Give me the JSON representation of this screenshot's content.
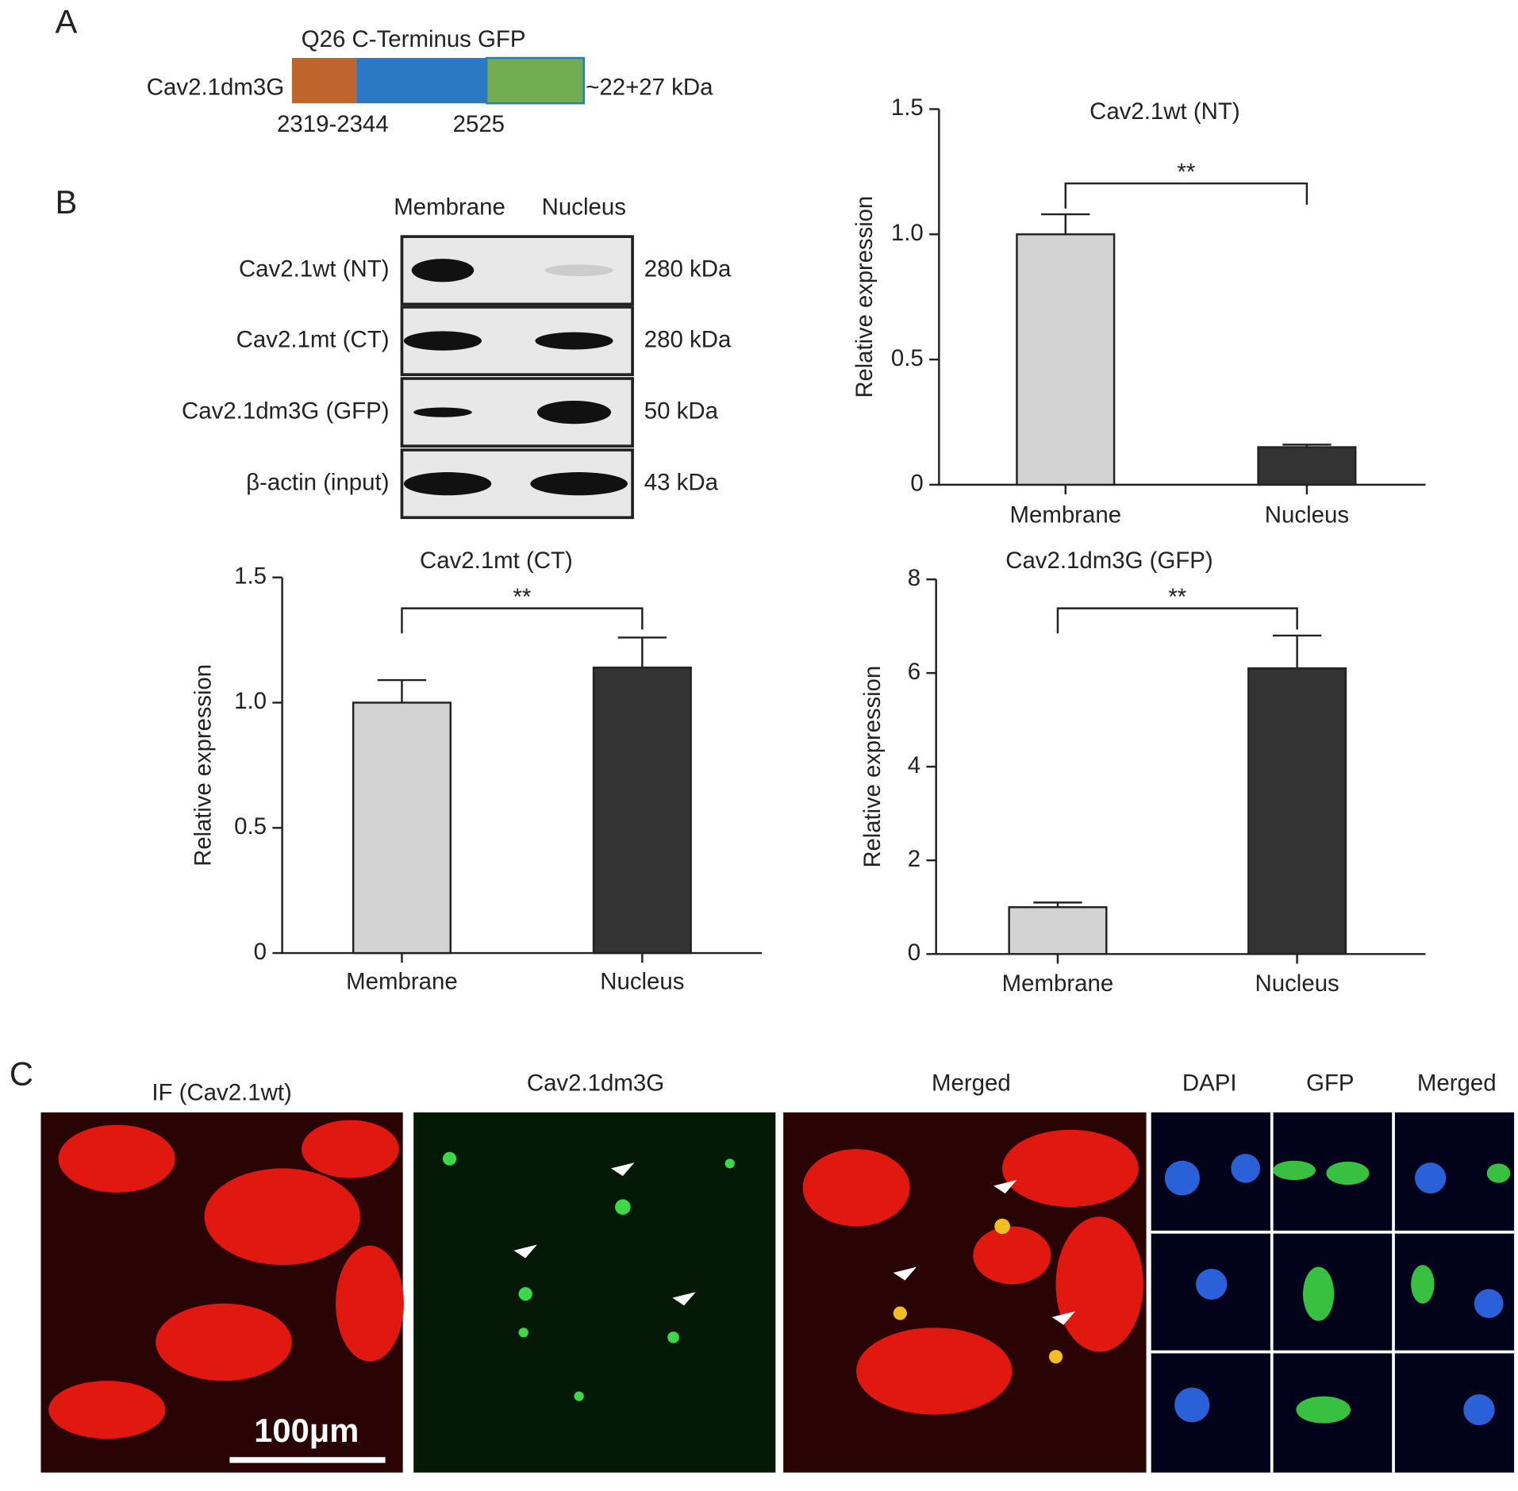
{
  "panel_a": {
    "letter": "A",
    "domains": "Q26 C-Terminus GFP",
    "construct": "Cav2.1dm3G",
    "size": "~22+27 kDa",
    "pos1": "2319-2344",
    "pos2": "2525"
  },
  "panel_b": {
    "letter": "B",
    "lanes": [
      "Membrane",
      "Nucleus"
    ],
    "rows": [
      {
        "label": "Cav2.1wt (NT)",
        "size": "280 kDa"
      },
      {
        "label": "Cav2.1mt (CT)",
        "size": "280 kDa"
      },
      {
        "label": "Cav2.1dm3G (GFP)",
        "size": "50 kDa"
      },
      {
        "label": "β-actin (input)",
        "size": "43 kDa"
      }
    ]
  },
  "panel_c": {
    "letter": "C",
    "labels": [
      "IF (Cav2.1wt)",
      "Cav2.1dm3G",
      "Merged",
      "DAPI",
      "GFP",
      "Merged"
    ],
    "scale_bar": "100μm"
  },
  "chart_data": [
    {
      "type": "bar",
      "title": "Cav2.1wt (NT)",
      "ylabel": "Relative expression",
      "categories": [
        "Membrane",
        "Nucleus"
      ],
      "values": [
        1.0,
        0.15
      ],
      "errors": [
        0.08,
        0.01
      ],
      "colors": [
        "#d3d3d3",
        "#333333"
      ],
      "ylim": [
        0,
        1.5
      ],
      "yticks": [
        0,
        0.5,
        {
          "value": 1,
          "label": "1.0"
        },
        1.5
      ],
      "annotation": "**"
    },
    {
      "type": "bar",
      "title": "Cav2.1mt (CT)",
      "ylabel": "Relative expression",
      "categories": [
        "Membrane",
        "Nucleus"
      ],
      "values": [
        1.0,
        1.14
      ],
      "errors": [
        0.09,
        0.12
      ],
      "colors": [
        "#d3d3d3",
        "#333333"
      ],
      "ylim": [
        0,
        1.5
      ],
      "yticks": [
        0,
        0.5,
        {
          "value": 1,
          "label": "1.0"
        },
        1.5
      ],
      "annotation": "**"
    },
    {
      "type": "bar",
      "title": "Cav2.1dm3G (GFP)",
      "ylabel": "Relative expression",
      "categories": [
        "Membrane",
        "Nucleus"
      ],
      "values": [
        1.0,
        6.1
      ],
      "errors": [
        0.1,
        0.7
      ],
      "colors": [
        "#d3d3d3",
        "#333333"
      ],
      "ylim": [
        0,
        8
      ],
      "yticks": [
        0,
        2,
        4,
        6,
        8
      ],
      "annotation": "**"
    }
  ]
}
